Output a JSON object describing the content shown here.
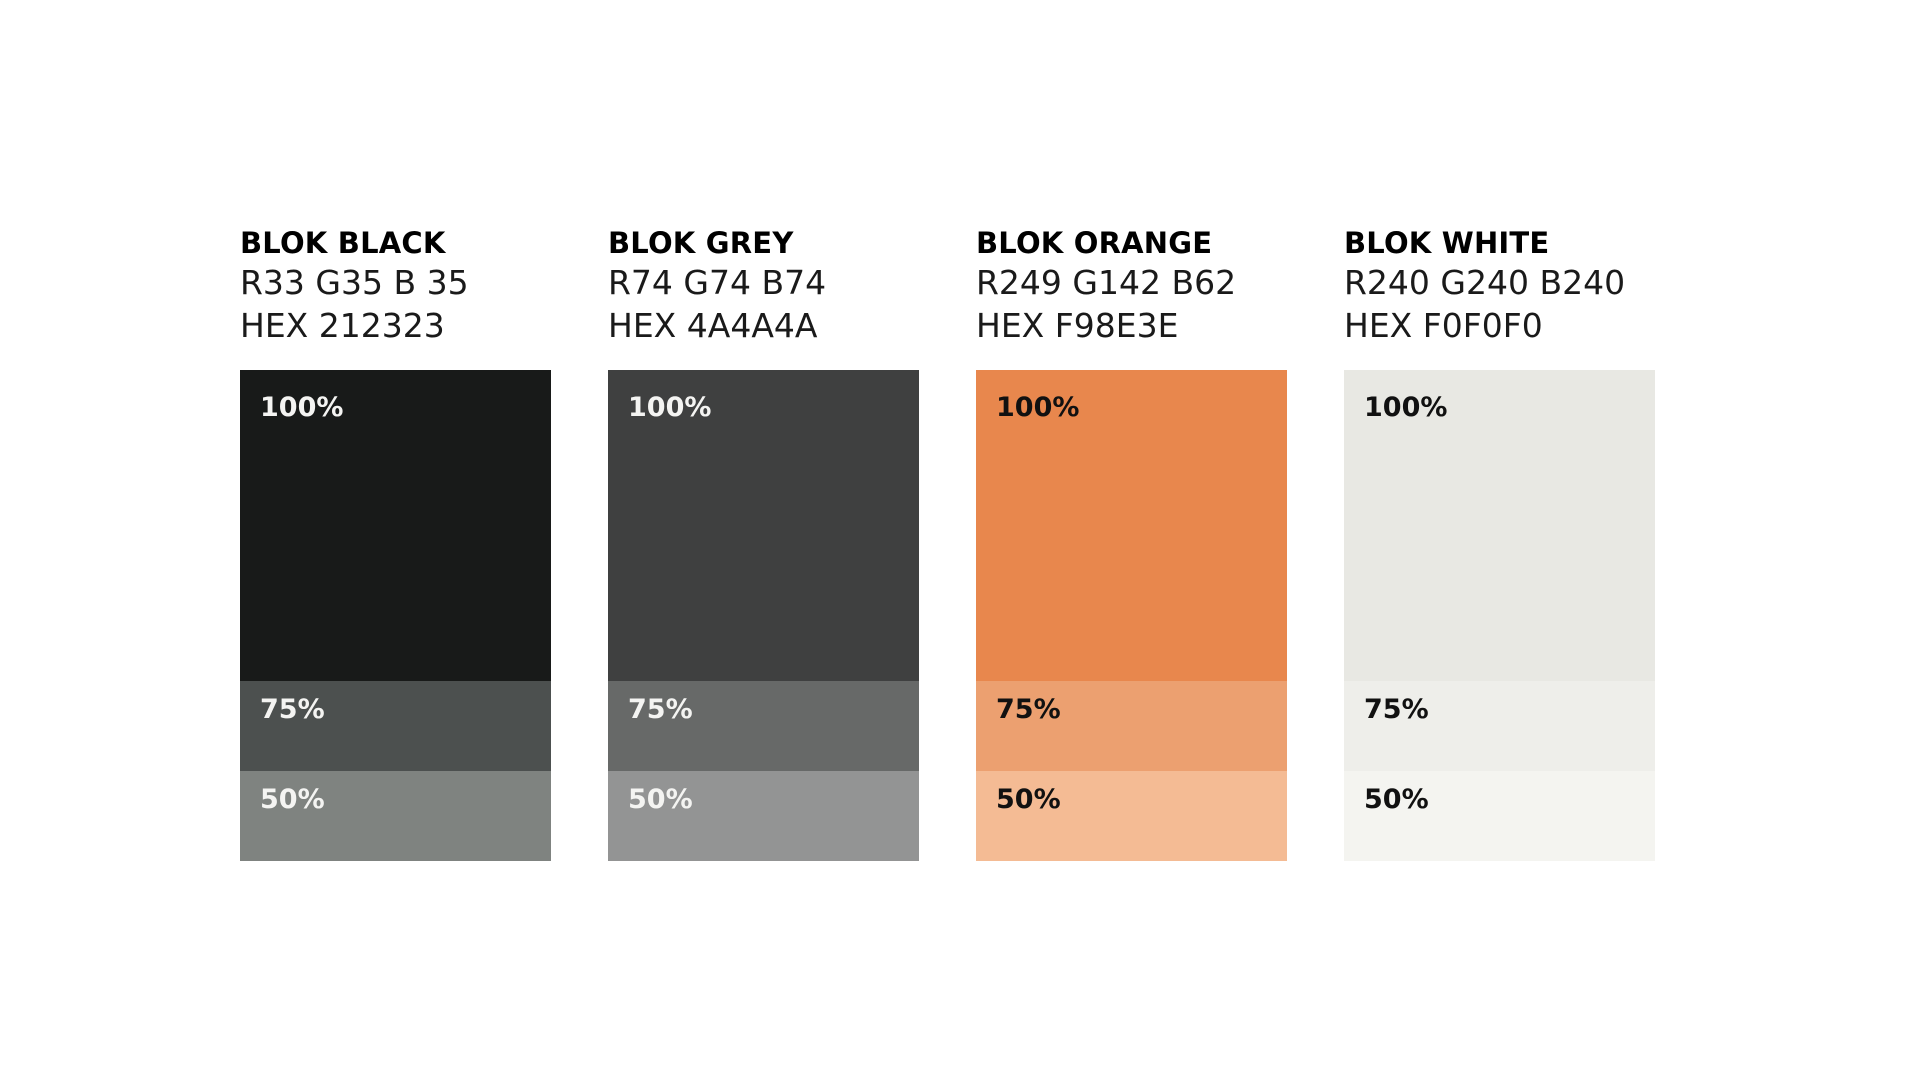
{
  "palette": [
    {
      "name": "BLOK BLACK",
      "rgb": "R33 G35 B 35",
      "hex": "HEX 212323",
      "label_color": "#f4f4f2",
      "tints": [
        {
          "label": "100%",
          "color": "#181a19"
        },
        {
          "label": "75%",
          "color": "#4c504f"
        },
        {
          "label": "50%",
          "color": "#7f8380"
        }
      ]
    },
    {
      "name": "BLOK GREY",
      "rgb": "R74 G74 B74",
      "hex": "HEX 4A4A4A",
      "label_color": "#f4f4f2",
      "tints": [
        {
          "label": "100%",
          "color": "#3f4040"
        },
        {
          "label": "75%",
          "color": "#676968"
        },
        {
          "label": "50%",
          "color": "#939494"
        }
      ]
    },
    {
      "name": "BLOK ORANGE",
      "rgb": "R249 G142 B62",
      "hex": "HEX F98E3E",
      "label_color": "#111111",
      "tints": [
        {
          "label": "100%",
          "color": "#e8874d"
        },
        {
          "label": "75%",
          "color": "#eca070"
        },
        {
          "label": "50%",
          "color": "#f4bb94"
        }
      ]
    },
    {
      "name": "BLOK WHITE",
      "rgb": "R240 G240 B240",
      "hex": "HEX F0F0F0",
      "label_color": "#111111",
      "tints": [
        {
          "label": "100%",
          "color": "#e8e8e3"
        },
        {
          "label": "75%",
          "color": "#eeeeea"
        },
        {
          "label": "50%",
          "color": "#f4f4f0"
        }
      ]
    }
  ]
}
